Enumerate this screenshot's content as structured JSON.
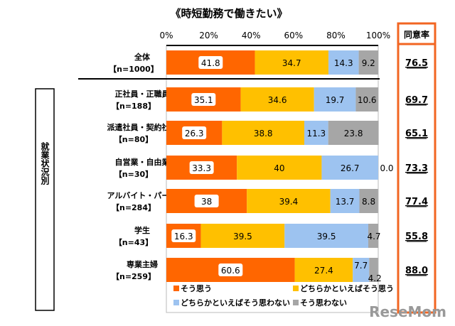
{
  "chart_data": {
    "type": "bar",
    "orientation": "horizontal-stacked",
    "title": "《時短勤務で働きたい》",
    "xlim": [
      0,
      100
    ],
    "xticks": [
      "0%",
      "20%",
      "40%",
      "60%",
      "80%",
      "100%"
    ],
    "group_label": "就業状況別",
    "categories": [
      {
        "name": "全体",
        "n": "【n=1000】"
      },
      {
        "name": "正社員・正職員",
        "n": "【n=188】"
      },
      {
        "name": "派遣社員・契約社員",
        "n": "【n=80】"
      },
      {
        "name": "自営業・自由業",
        "n": "【n=30】"
      },
      {
        "name": "アルバイト・パート",
        "n": "【n=284】"
      },
      {
        "name": "学生",
        "n": "【n=43】"
      },
      {
        "name": "専業主婦",
        "n": "【n=259】"
      }
    ],
    "series": [
      {
        "name": "そう思う",
        "color": "#ff6600",
        "values": [
          41.8,
          35.1,
          26.3,
          33.3,
          38,
          16.3,
          60.6
        ]
      },
      {
        "name": "どちらかといえばそう思う",
        "color": "#ffc000",
        "values": [
          34.7,
          34.6,
          38.8,
          40,
          39.4,
          39.5,
          27.4
        ]
      },
      {
        "name": "どちらかといえばそう思わない",
        "color": "#9dc3f0",
        "values": [
          14.3,
          19.7,
          11.3,
          26.7,
          13.7,
          39.5,
          7.7
        ]
      },
      {
        "name": "そう思わない",
        "color": "#a6a6a6",
        "values": [
          9.2,
          10.6,
          23.8,
          0.0,
          8.8,
          4.7,
          4.2
        ]
      }
    ],
    "value_labels": [
      [
        "41.8",
        "34.7",
        "14.3",
        "9.2"
      ],
      [
        "35.1",
        "34.6",
        "19.7",
        "10.6"
      ],
      [
        "26.3",
        "38.8",
        "11.3",
        "23.8"
      ],
      [
        "33.3",
        "40",
        "26.7",
        "0.0"
      ],
      [
        "38",
        "39.4",
        "13.7",
        "8.8"
      ],
      [
        "16.3",
        "39.5",
        "39.5",
        "4.7"
      ],
      [
        "60.6",
        "27.4",
        "7.7",
        "4.2"
      ]
    ],
    "agree_rate": {
      "header": "同意率",
      "accent": "#f26522",
      "values": [
        "76.5",
        "69.7",
        "65.1",
        "73.3",
        "77.4",
        "55.8",
        "88.0"
      ]
    },
    "legend_position": "bottom"
  },
  "watermark": "ReseMom"
}
